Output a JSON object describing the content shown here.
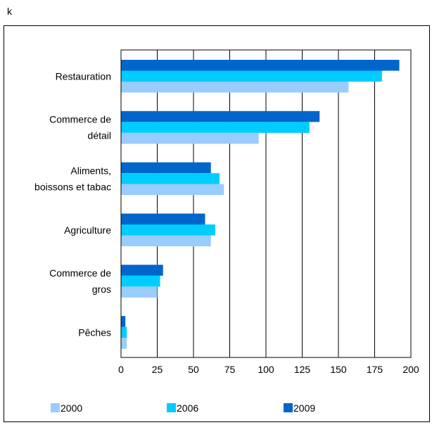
{
  "corner_label": "k",
  "chart_data": {
    "type": "bar",
    "orientation": "horizontal",
    "categories": [
      [
        "Restauration"
      ],
      [
        "Commerce de",
        "détail"
      ],
      [
        "Aliments,",
        "boissons et tabac"
      ],
      [
        "Agriculture"
      ],
      [
        "Commerce de",
        "gros"
      ],
      [
        "Pêches"
      ]
    ],
    "series": [
      {
        "name": "2009",
        "color": "#0066cc",
        "values": [
          192,
          137,
          62,
          58,
          29,
          3
        ]
      },
      {
        "name": "2006",
        "color": "#00ccff",
        "values": [
          180,
          130,
          68,
          65,
          27,
          4
        ]
      },
      {
        "name": "2000",
        "color": "#99ccff",
        "values": [
          157,
          95,
          71,
          62,
          25,
          4
        ]
      }
    ],
    "legend_order": [
      "2000",
      "2006",
      "2009"
    ],
    "xlim": [
      0,
      200
    ],
    "xticks": [
      "0",
      "25",
      "50",
      "75",
      "100",
      "125",
      "150",
      "175",
      "200"
    ],
    "tick_values": [
      0,
      25,
      50,
      75,
      100,
      125,
      150,
      175,
      200
    ],
    "grid": "vertical",
    "legend_position": "bottom"
  }
}
